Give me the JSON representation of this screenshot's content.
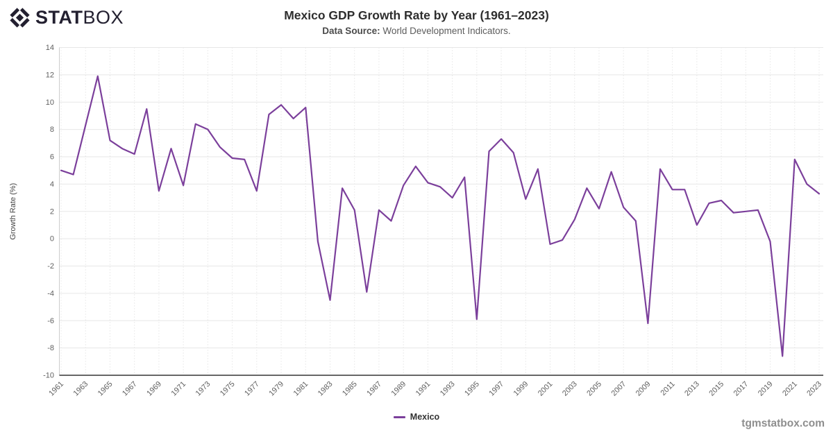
{
  "logo": {
    "stat": "STAT",
    "box": "BOX"
  },
  "header": {
    "title": "Mexico GDP Growth Rate by Year (1961–2023)",
    "source_label": "Data Source:",
    "source_value": "World Development Indicators."
  },
  "chart_data": {
    "type": "line",
    "title": "Mexico GDP Growth Rate by Year (1961–2023)",
    "xlabel": "",
    "ylabel": "Growth Rate (%)",
    "ylim": [
      -10,
      14
    ],
    "ytick_step": 2,
    "grid": {
      "horizontal": "solid",
      "vertical": "dotted"
    },
    "legend_position": "bottom-center",
    "x": [
      1961,
      1962,
      1963,
      1964,
      1965,
      1966,
      1967,
      1968,
      1969,
      1970,
      1971,
      1972,
      1973,
      1974,
      1975,
      1976,
      1977,
      1978,
      1979,
      1980,
      1981,
      1982,
      1983,
      1984,
      1985,
      1986,
      1987,
      1988,
      1989,
      1990,
      1991,
      1992,
      1993,
      1994,
      1995,
      1996,
      1997,
      1998,
      1999,
      2000,
      2001,
      2002,
      2003,
      2004,
      2005,
      2006,
      2007,
      2008,
      2009,
      2010,
      2011,
      2012,
      2013,
      2014,
      2015,
      2016,
      2017,
      2018,
      2019,
      2020,
      2021,
      2022,
      2023
    ],
    "xticks": [
      1961,
      1963,
      1965,
      1967,
      1969,
      1971,
      1973,
      1975,
      1977,
      1979,
      1981,
      1983,
      1985,
      1987,
      1989,
      1991,
      1993,
      1995,
      1997,
      1999,
      2001,
      2003,
      2005,
      2007,
      2009,
      2011,
      2013,
      2015,
      2017,
      2019,
      2021,
      2023
    ],
    "series": [
      {
        "name": "Mexico",
        "color": "#7b3f9b",
        "values": [
          5.0,
          4.7,
          8.3,
          11.9,
          7.2,
          6.6,
          6.2,
          9.5,
          3.5,
          6.6,
          3.9,
          8.4,
          8.0,
          6.7,
          5.9,
          5.8,
          3.5,
          9.1,
          9.8,
          8.8,
          9.6,
          -0.2,
          -4.5,
          3.7,
          2.1,
          -3.9,
          2.1,
          1.3,
          3.9,
          5.3,
          4.1,
          3.8,
          3.0,
          4.5,
          -5.9,
          6.4,
          7.3,
          6.3,
          2.9,
          5.1,
          -0.4,
          -0.1,
          1.4,
          3.7,
          2.2,
          4.9,
          2.3,
          1.3,
          -6.2,
          5.1,
          3.6,
          3.6,
          1.0,
          2.6,
          2.8,
          1.9,
          2.0,
          2.1,
          -0.2,
          -8.6,
          5.8,
          4.0,
          3.3
        ]
      }
    ]
  },
  "legend": {
    "label": "Mexico",
    "color": "#7b3f9b"
  },
  "footer": {
    "text": "tgmstatbox.com"
  },
  "colors": {
    "line": "#7b3f9b",
    "title": "#2e2e2e",
    "subtitle": "#5c5c5c",
    "axis_line": "#333333",
    "grid_solid": "#e7e7e7",
    "grid_dotted": "#d9d9d9",
    "tick_text": "#5f5f5f",
    "logo": "#232030",
    "footer_text": "#8e8e8e",
    "background": "#ffffff"
  }
}
